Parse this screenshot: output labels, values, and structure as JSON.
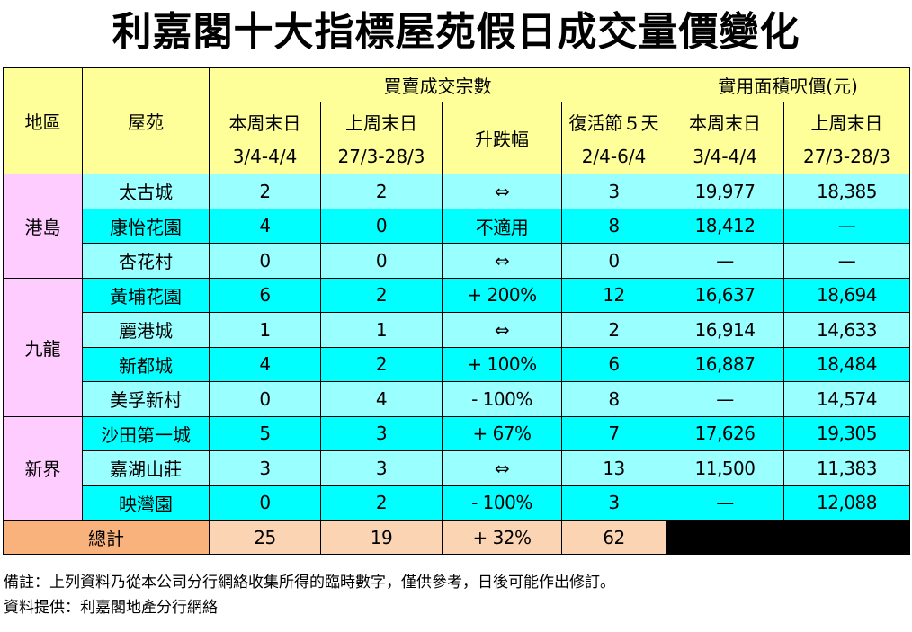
{
  "title": "利嘉閣十大指標屋苑假日成交量價變化",
  "header": {
    "district": "地區",
    "estate": "屋苑",
    "transactions_group": "買賣成交宗數",
    "price_group": "實用面積呎價(元)",
    "cols": {
      "this_weekend": "本周末日",
      "this_weekend_dates": "3/4-4/4",
      "last_weekend": "上周末日",
      "last_weekend_dates": "27/3-28/3",
      "change": "升跌幅",
      "easter": "復活節５天",
      "easter_dates": "2/4-6/4",
      "price_this": "本周末日",
      "price_this_dates": "3/4-4/4",
      "price_last": "上周末日",
      "price_last_dates": "27/3-28/3"
    }
  },
  "regions": [
    {
      "name": "港島",
      "rows": [
        {
          "estate": "太古城",
          "this": "2",
          "last": "2",
          "change": "⇔",
          "easter": "3",
          "price_this": "19,977",
          "price_last": "18,385"
        },
        {
          "estate": "康怡花園",
          "this": "4",
          "last": "0",
          "change": "不適用",
          "easter": "8",
          "price_this": "18,412",
          "price_last": "—"
        },
        {
          "estate": "杏花村",
          "this": "0",
          "last": "0",
          "change": "⇔",
          "easter": "0",
          "price_this": "—",
          "price_last": "—"
        }
      ]
    },
    {
      "name": "九龍",
      "rows": [
        {
          "estate": "黃埔花園",
          "this": "6",
          "last": "2",
          "change": "+ 200%",
          "easter": "12",
          "price_this": "16,637",
          "price_last": "18,694"
        },
        {
          "estate": "麗港城",
          "this": "1",
          "last": "1",
          "change": "⇔",
          "easter": "2",
          "price_this": "16,914",
          "price_last": "14,633"
        },
        {
          "estate": "新都城",
          "this": "4",
          "last": "2",
          "change": "+ 100%",
          "easter": "6",
          "price_this": "16,887",
          "price_last": "18,484"
        },
        {
          "estate": "美孚新村",
          "this": "0",
          "last": "4",
          "change": "- 100%",
          "easter": "8",
          "price_this": "—",
          "price_last": "14,574"
        }
      ]
    },
    {
      "name": "新界",
      "rows": [
        {
          "estate": "沙田第一城",
          "this": "5",
          "last": "3",
          "change": "+ 67%",
          "easter": "7",
          "price_this": "17,626",
          "price_last": "19,305"
        },
        {
          "estate": "嘉湖山莊",
          "this": "3",
          "last": "3",
          "change": "⇔",
          "easter": "13",
          "price_this": "11,500",
          "price_last": "11,383"
        },
        {
          "estate": "映灣園",
          "this": "0",
          "last": "2",
          "change": "- 100%",
          "easter": "3",
          "price_this": "—",
          "price_last": "12,088"
        }
      ]
    }
  ],
  "total": {
    "label": "總計",
    "this": "25",
    "last": "19",
    "change": "+ 32%",
    "easter": "62"
  },
  "notes": {
    "remark": "備註：上列資料乃從本公司分行網絡收集所得的臨時數字，僅供參考，日後可能作出修訂。",
    "source": "資料提供：利嘉閣地產分行網絡"
  },
  "colors": {
    "header": "#ffff99",
    "row_light": "#99ffff",
    "row_dark": "#00ffff",
    "region": "#ffccff",
    "total_label": "#f9b27c",
    "total_cells": "#fbd4b4"
  }
}
